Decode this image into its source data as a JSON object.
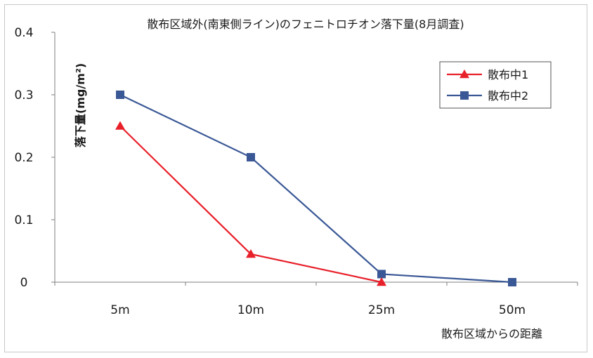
{
  "chart_data": {
    "type": "line",
    "title": "散布区域外(南東側ライン)のフェニトロチオン落下量(8月調査)",
    "xlabel": "散布区域からの距離",
    "ylabel": "落下量(mg/m²)",
    "categories": [
      "5m",
      "10m",
      "25m",
      "50m"
    ],
    "ylim": [
      0,
      0.4
    ],
    "yticks": [
      "0",
      "0.1",
      "0.2",
      "0.3",
      "0.4"
    ],
    "ytick_values": [
      0,
      0.1,
      0.2,
      0.3,
      0.4
    ],
    "grid": false,
    "legend_position": "top-right",
    "series": [
      {
        "name": "散布中1",
        "values": [
          0.25,
          0.045,
          0.0,
          null
        ],
        "color": "#e8202a",
        "marker": "triangle"
      },
      {
        "name": "散布中2",
        "values": [
          0.3,
          0.2,
          0.013,
          0.0
        ],
        "color": "#3a5896",
        "marker": "square"
      }
    ]
  }
}
